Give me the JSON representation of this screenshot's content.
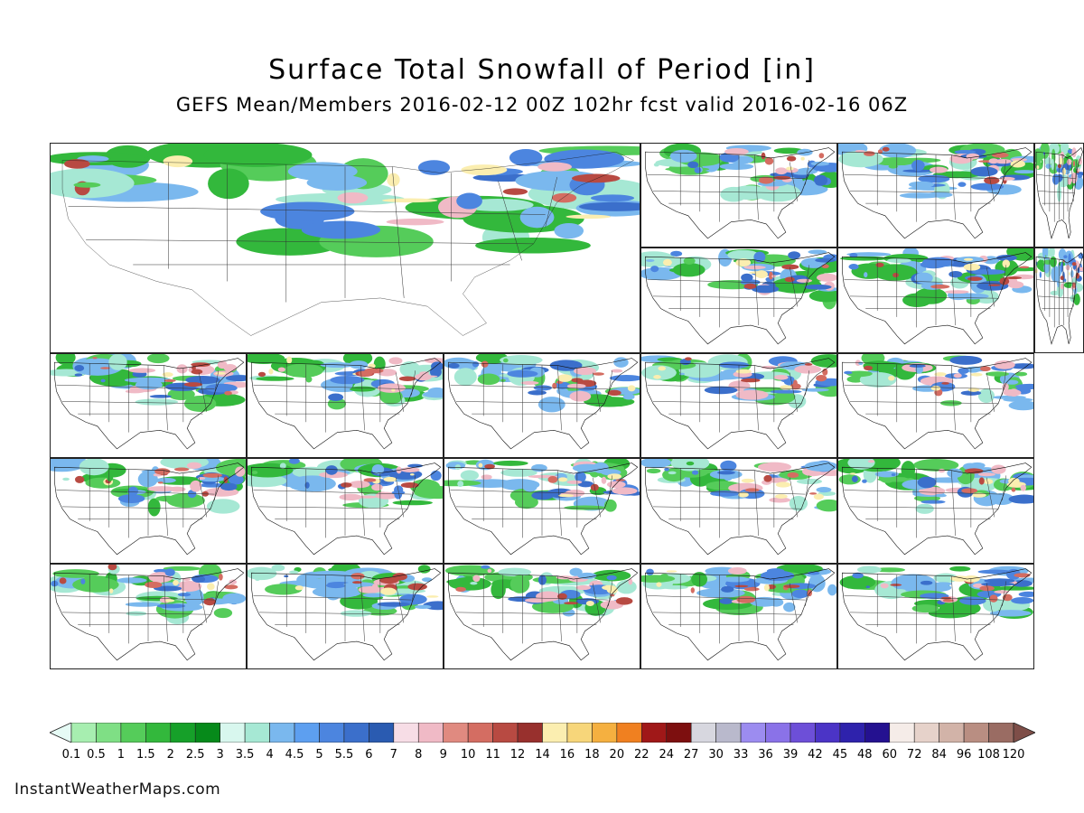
{
  "title": "Surface Total Snowfall of Period [in]",
  "subtitle": "GEFS Mean/Members 2016-02-12 00Z 102hr fcst valid 2016-02-16 06Z",
  "credit": "InstantWeatherMaps.com",
  "panels": [
    {
      "id": "mean",
      "kind": "ensemble-mean"
    },
    {
      "id": "m01"
    },
    {
      "id": "m02"
    },
    {
      "id": "m03"
    },
    {
      "id": "m04"
    },
    {
      "id": "m05"
    },
    {
      "id": "m06"
    },
    {
      "id": "m07"
    },
    {
      "id": "m08"
    },
    {
      "id": "m09"
    },
    {
      "id": "m10"
    },
    {
      "id": "m11"
    },
    {
      "id": "m12"
    },
    {
      "id": "m13"
    },
    {
      "id": "m14"
    },
    {
      "id": "m15"
    },
    {
      "id": "m16"
    },
    {
      "id": "m17"
    },
    {
      "id": "m18"
    },
    {
      "id": "m19"
    },
    {
      "id": "m20"
    }
  ],
  "colorbar": {
    "labels": [
      "0.1",
      "0.5",
      "1",
      "1.5",
      "2",
      "2.5",
      "3",
      "3.5",
      "4",
      "4.5",
      "5",
      "5.5",
      "6",
      "7",
      "8",
      "9",
      "10",
      "11",
      "12",
      "14",
      "16",
      "18",
      "20",
      "22",
      "24",
      "27",
      "30",
      "33",
      "36",
      "39",
      "42",
      "45",
      "48",
      "60",
      "72",
      "84",
      "96",
      "108",
      "120"
    ],
    "colors": [
      "#e6fbf5",
      "#a7eeb0",
      "#7fdf85",
      "#55cc5a",
      "#33b83c",
      "#16a029",
      "#068a1a",
      "#d8f7ee",
      "#a6e8d4",
      "#7ab8ee",
      "#5d9ff0",
      "#4c85df",
      "#3b6fcb",
      "#2a5bb1",
      "#f7dde6",
      "#f0bac6",
      "#e08a80",
      "#d46d62",
      "#b84a42",
      "#98302d",
      "#fbeeb0",
      "#f7d67a",
      "#f5b040",
      "#f08020",
      "#a01818",
      "#7d0f0f",
      "#d7d7df",
      "#b9b9cc",
      "#9c8cf0",
      "#8a72e8",
      "#6d4fd8",
      "#4b34c6",
      "#2e22ac",
      "#241190",
      "#f5ece8",
      "#e6d2ca",
      "#d2b3a8",
      "#b98e82",
      "#9a6c63",
      "#7e4e48"
    ]
  }
}
